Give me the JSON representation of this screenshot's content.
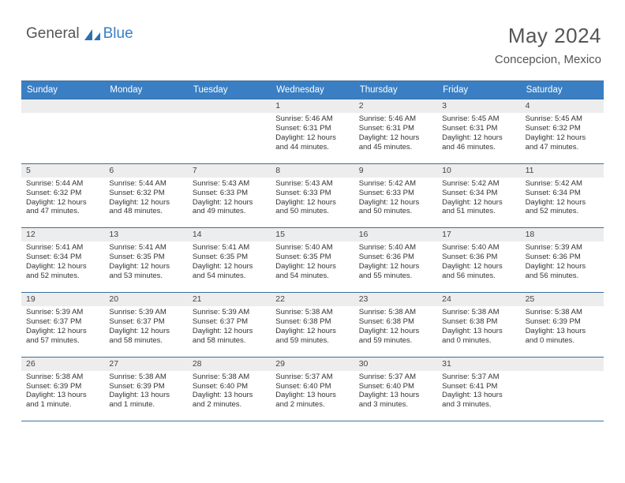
{
  "brand": {
    "part1": "General",
    "part2": "Blue"
  },
  "colors": {
    "header_bg": "#3a7fc4",
    "header_border": "#3a6fa0",
    "daynum_bg": "#ededed",
    "text_dark": "#444444",
    "body_text": "#333333",
    "title_gray": "#555555"
  },
  "title": "May 2024",
  "location": "Concepcion, Mexico",
  "columns": [
    "Sunday",
    "Monday",
    "Tuesday",
    "Wednesday",
    "Thursday",
    "Friday",
    "Saturday"
  ],
  "weeks": [
    [
      {
        "n": "",
        "sr": "",
        "ss": "",
        "dl": ""
      },
      {
        "n": "",
        "sr": "",
        "ss": "",
        "dl": ""
      },
      {
        "n": "",
        "sr": "",
        "ss": "",
        "dl": ""
      },
      {
        "n": "1",
        "sr": "Sunrise: 5:46 AM",
        "ss": "Sunset: 6:31 PM",
        "dl": "Daylight: 12 hours and 44 minutes."
      },
      {
        "n": "2",
        "sr": "Sunrise: 5:46 AM",
        "ss": "Sunset: 6:31 PM",
        "dl": "Daylight: 12 hours and 45 minutes."
      },
      {
        "n": "3",
        "sr": "Sunrise: 5:45 AM",
        "ss": "Sunset: 6:31 PM",
        "dl": "Daylight: 12 hours and 46 minutes."
      },
      {
        "n": "4",
        "sr": "Sunrise: 5:45 AM",
        "ss": "Sunset: 6:32 PM",
        "dl": "Daylight: 12 hours and 47 minutes."
      }
    ],
    [
      {
        "n": "5",
        "sr": "Sunrise: 5:44 AM",
        "ss": "Sunset: 6:32 PM",
        "dl": "Daylight: 12 hours and 47 minutes."
      },
      {
        "n": "6",
        "sr": "Sunrise: 5:44 AM",
        "ss": "Sunset: 6:32 PM",
        "dl": "Daylight: 12 hours and 48 minutes."
      },
      {
        "n": "7",
        "sr": "Sunrise: 5:43 AM",
        "ss": "Sunset: 6:33 PM",
        "dl": "Daylight: 12 hours and 49 minutes."
      },
      {
        "n": "8",
        "sr": "Sunrise: 5:43 AM",
        "ss": "Sunset: 6:33 PM",
        "dl": "Daylight: 12 hours and 50 minutes."
      },
      {
        "n": "9",
        "sr": "Sunrise: 5:42 AM",
        "ss": "Sunset: 6:33 PM",
        "dl": "Daylight: 12 hours and 50 minutes."
      },
      {
        "n": "10",
        "sr": "Sunrise: 5:42 AM",
        "ss": "Sunset: 6:34 PM",
        "dl": "Daylight: 12 hours and 51 minutes."
      },
      {
        "n": "11",
        "sr": "Sunrise: 5:42 AM",
        "ss": "Sunset: 6:34 PM",
        "dl": "Daylight: 12 hours and 52 minutes."
      }
    ],
    [
      {
        "n": "12",
        "sr": "Sunrise: 5:41 AM",
        "ss": "Sunset: 6:34 PM",
        "dl": "Daylight: 12 hours and 52 minutes."
      },
      {
        "n": "13",
        "sr": "Sunrise: 5:41 AM",
        "ss": "Sunset: 6:35 PM",
        "dl": "Daylight: 12 hours and 53 minutes."
      },
      {
        "n": "14",
        "sr": "Sunrise: 5:41 AM",
        "ss": "Sunset: 6:35 PM",
        "dl": "Daylight: 12 hours and 54 minutes."
      },
      {
        "n": "15",
        "sr": "Sunrise: 5:40 AM",
        "ss": "Sunset: 6:35 PM",
        "dl": "Daylight: 12 hours and 54 minutes."
      },
      {
        "n": "16",
        "sr": "Sunrise: 5:40 AM",
        "ss": "Sunset: 6:36 PM",
        "dl": "Daylight: 12 hours and 55 minutes."
      },
      {
        "n": "17",
        "sr": "Sunrise: 5:40 AM",
        "ss": "Sunset: 6:36 PM",
        "dl": "Daylight: 12 hours and 56 minutes."
      },
      {
        "n": "18",
        "sr": "Sunrise: 5:39 AM",
        "ss": "Sunset: 6:36 PM",
        "dl": "Daylight: 12 hours and 56 minutes."
      }
    ],
    [
      {
        "n": "19",
        "sr": "Sunrise: 5:39 AM",
        "ss": "Sunset: 6:37 PM",
        "dl": "Daylight: 12 hours and 57 minutes."
      },
      {
        "n": "20",
        "sr": "Sunrise: 5:39 AM",
        "ss": "Sunset: 6:37 PM",
        "dl": "Daylight: 12 hours and 58 minutes."
      },
      {
        "n": "21",
        "sr": "Sunrise: 5:39 AM",
        "ss": "Sunset: 6:37 PM",
        "dl": "Daylight: 12 hours and 58 minutes."
      },
      {
        "n": "22",
        "sr": "Sunrise: 5:38 AM",
        "ss": "Sunset: 6:38 PM",
        "dl": "Daylight: 12 hours and 59 minutes."
      },
      {
        "n": "23",
        "sr": "Sunrise: 5:38 AM",
        "ss": "Sunset: 6:38 PM",
        "dl": "Daylight: 12 hours and 59 minutes."
      },
      {
        "n": "24",
        "sr": "Sunrise: 5:38 AM",
        "ss": "Sunset: 6:38 PM",
        "dl": "Daylight: 13 hours and 0 minutes."
      },
      {
        "n": "25",
        "sr": "Sunrise: 5:38 AM",
        "ss": "Sunset: 6:39 PM",
        "dl": "Daylight: 13 hours and 0 minutes."
      }
    ],
    [
      {
        "n": "26",
        "sr": "Sunrise: 5:38 AM",
        "ss": "Sunset: 6:39 PM",
        "dl": "Daylight: 13 hours and 1 minute."
      },
      {
        "n": "27",
        "sr": "Sunrise: 5:38 AM",
        "ss": "Sunset: 6:39 PM",
        "dl": "Daylight: 13 hours and 1 minute."
      },
      {
        "n": "28",
        "sr": "Sunrise: 5:38 AM",
        "ss": "Sunset: 6:40 PM",
        "dl": "Daylight: 13 hours and 2 minutes."
      },
      {
        "n": "29",
        "sr": "Sunrise: 5:37 AM",
        "ss": "Sunset: 6:40 PM",
        "dl": "Daylight: 13 hours and 2 minutes."
      },
      {
        "n": "30",
        "sr": "Sunrise: 5:37 AM",
        "ss": "Sunset: 6:40 PM",
        "dl": "Daylight: 13 hours and 3 minutes."
      },
      {
        "n": "31",
        "sr": "Sunrise: 5:37 AM",
        "ss": "Sunset: 6:41 PM",
        "dl": "Daylight: 13 hours and 3 minutes."
      },
      {
        "n": "",
        "sr": "",
        "ss": "",
        "dl": ""
      }
    ]
  ]
}
